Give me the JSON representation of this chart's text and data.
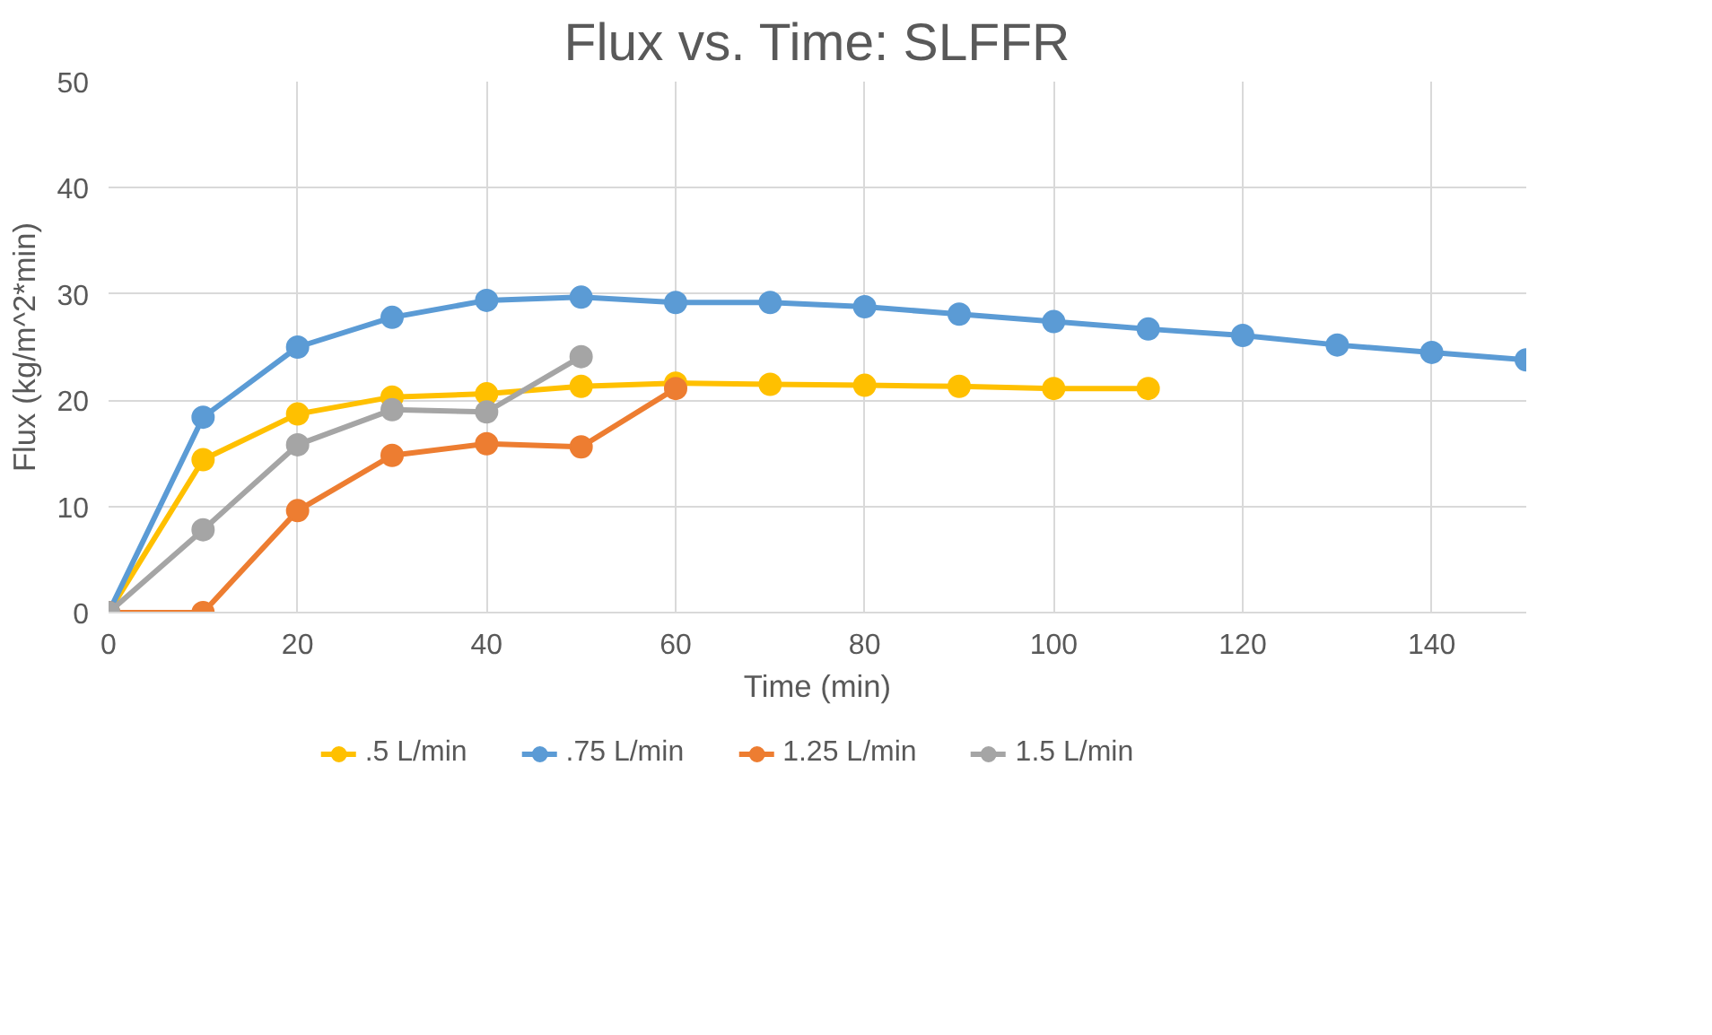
{
  "chart_data": {
    "type": "line",
    "title": "Flux vs. Time: SLFFR",
    "xlabel": "Time (min)",
    "ylabel": "Flux (kg/m^2*min)",
    "xlim": [
      0,
      150
    ],
    "xticks": [
      0,
      20,
      40,
      60,
      80,
      100,
      120,
      140
    ],
    "ylim": [
      0,
      50
    ],
    "yticks": [
      0,
      10,
      20,
      30,
      40,
      50
    ],
    "grid": true,
    "legend": "bottom",
    "marker": "circle",
    "line_style": "solid",
    "series": [
      {
        "name": ".5 L/min",
        "color": "#ffc000",
        "x": [
          0,
          10,
          20,
          30,
          40,
          50,
          60,
          70,
          80,
          90,
          100,
          110
        ],
        "values": [
          0,
          14.4,
          18.7,
          20.3,
          20.6,
          21.3,
          21.6,
          21.5,
          21.4,
          21.3,
          21.1,
          21.1
        ]
      },
      {
        "name": ".75 L/min",
        "color": "#5b9bd5",
        "x": [
          0,
          10,
          20,
          30,
          40,
          50,
          60,
          70,
          80,
          90,
          100,
          110,
          120,
          130,
          140,
          150
        ],
        "values": [
          0,
          18.4,
          25,
          27.8,
          29.4,
          29.7,
          29.2,
          29.2,
          28.8,
          28.1,
          27.4,
          26.7,
          26.1,
          25.2,
          24.5,
          23.8
        ]
      },
      {
        "name": "1.25 L/min",
        "color": "#ed7d31",
        "x": [
          0,
          10,
          20,
          30,
          40,
          50,
          60
        ],
        "values": [
          0,
          0,
          9.6,
          14.8,
          15.9,
          15.6,
          21.1
        ]
      },
      {
        "name": "1.5 L/min",
        "color": "#a5a5a5",
        "x": [
          0,
          10,
          20,
          30,
          40,
          50
        ],
        "values": [
          0,
          7.8,
          15.8,
          19.1,
          18.9,
          24.1
        ]
      }
    ]
  }
}
